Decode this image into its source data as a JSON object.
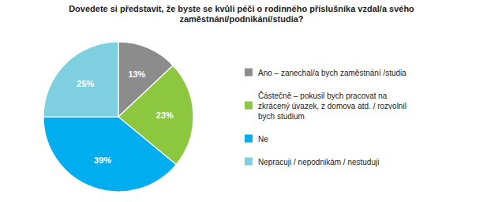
{
  "chart_data": {
    "type": "pie",
    "title": "Dovedete si představit, že byste se kvůli péči o rodinného příslušníka vzdal/a svého\nzaměstnání/podnikání/studia?",
    "categories": [
      "Ano – zanechal/a bych zaměstnání /studia",
      "Částečně – pokusil bych pracovat na\nzkrácený úvazek, z domova atd. / rozvolnil\nbych studium",
      "Ne",
      "Nepracuji / nepodnikám / nestuduji"
    ],
    "values": [
      13,
      23,
      39,
      25
    ],
    "value_labels": [
      "13%",
      "23%",
      "39%",
      "25%"
    ],
    "colors": [
      "#8c8c8c",
      "#8dc63f",
      "#00aeef",
      "#7ecfe0"
    ],
    "data_labels": true,
    "legend": "right"
  }
}
